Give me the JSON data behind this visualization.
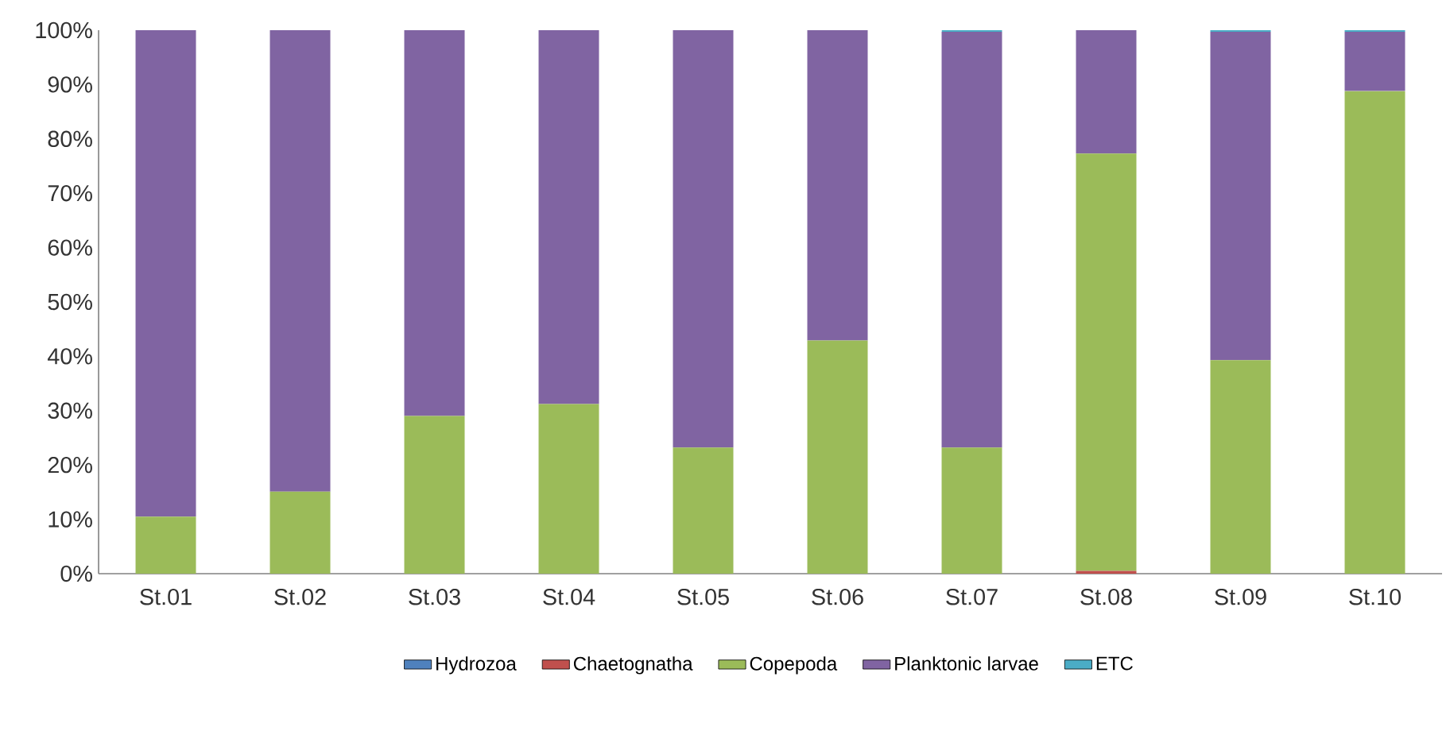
{
  "chart_data": {
    "type": "bar",
    "stacked": true,
    "categories": [
      "St.01",
      "St.02",
      "St.03",
      "St.04",
      "St.05",
      "St.06",
      "St.07",
      "St.08",
      "St.09",
      "St.10"
    ],
    "series": [
      {
        "name": "Hydrozoa",
        "color": "#4f81bd",
        "values": [
          0,
          0,
          0,
          0,
          0,
          0,
          0,
          0,
          0,
          0
        ]
      },
      {
        "name": "Chaetognatha",
        "color": "#c0504d",
        "values": [
          0,
          0,
          0,
          0,
          0,
          0,
          0,
          0.5,
          0,
          0
        ]
      },
      {
        "name": "Copepoda",
        "color": "#9bbb59",
        "values": [
          10.5,
          15.1,
          29,
          31.2,
          23.2,
          42.9,
          23.2,
          76.8,
          39.3,
          88.8
        ]
      },
      {
        "name": "Planktonic larvae",
        "color": "#8064a2",
        "values": [
          89.5,
          84.9,
          71,
          68.8,
          76.8,
          57.1,
          76.5,
          22.7,
          60.4,
          10.9
        ]
      },
      {
        "name": "ETC",
        "color": "#4bacc6",
        "values": [
          0,
          0,
          0,
          0,
          0,
          0,
          0.3,
          0,
          0.3,
          0.3
        ]
      }
    ],
    "ylim": [
      0,
      100
    ],
    "yticks": [
      {
        "value": 0,
        "label": "0%"
      },
      {
        "value": 10,
        "label": "10%"
      },
      {
        "value": 20,
        "label": "20%"
      },
      {
        "value": 30,
        "label": "30%"
      },
      {
        "value": 40,
        "label": "40%"
      },
      {
        "value": 50,
        "label": "50%"
      },
      {
        "value": 60,
        "label": "60%"
      },
      {
        "value": 70,
        "label": "70%"
      },
      {
        "value": 80,
        "label": "80%"
      },
      {
        "value": 90,
        "label": "90%"
      },
      {
        "value": 100,
        "label": "100%"
      }
    ],
    "grid": false,
    "legend": "bottom"
  }
}
